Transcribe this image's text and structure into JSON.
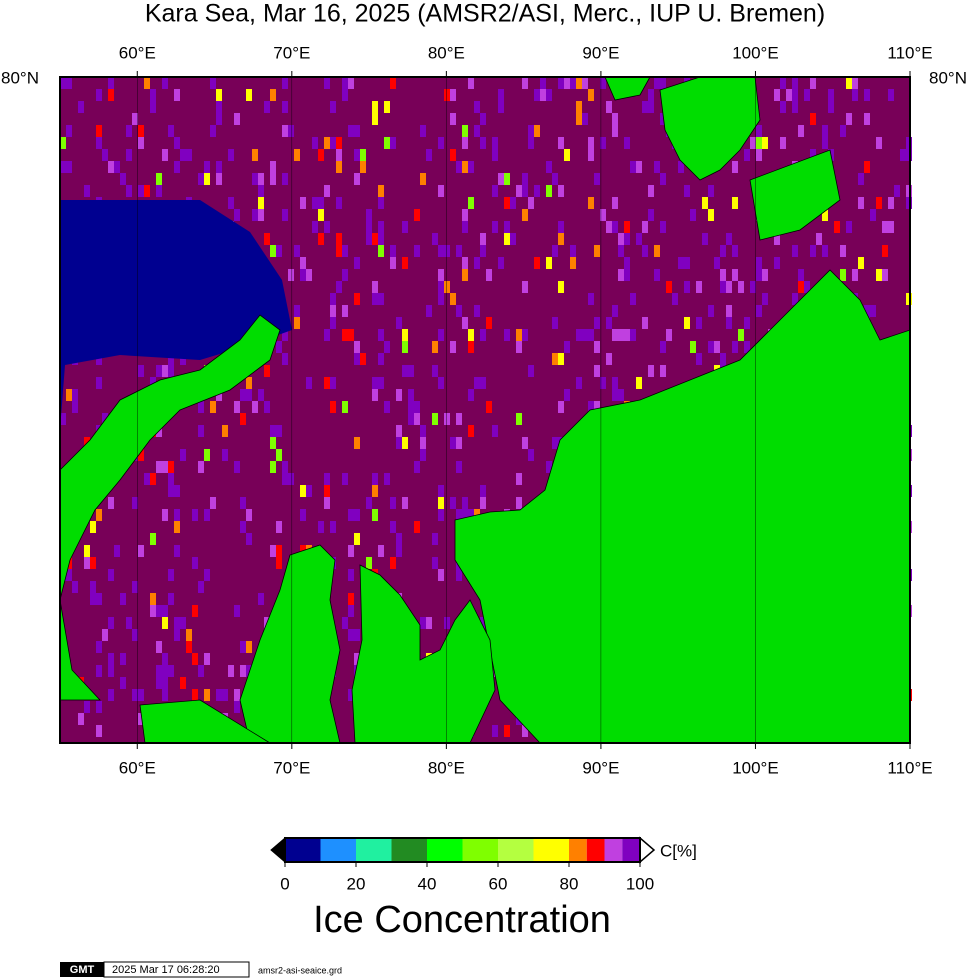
{
  "map": {
    "title": "Kara Sea, Mar 16, 2025 (AMSR2/ASI, Merc., IUP U. Bremen)",
    "lonlim": [
      55,
      110
    ],
    "lonticks": [
      {
        "value": 60,
        "label": "60°E"
      },
      {
        "value": 70,
        "label": "70°E"
      },
      {
        "value": 80,
        "label": "80°E"
      },
      {
        "value": 90,
        "label": "90°E"
      },
      {
        "value": 100,
        "label": "100°E"
      },
      {
        "value": 110,
        "label": "110°E"
      }
    ],
    "lat_label": "80°N",
    "ocean_color": "#780058",
    "land_color": "#00dd00"
  },
  "colorbar": {
    "bins": [
      0,
      10,
      20,
      30,
      40,
      50,
      60,
      70,
      80,
      85,
      90,
      95,
      100
    ],
    "colors": [
      "#000090",
      "#1e90ff",
      "#20f0a0",
      "#228b22",
      "#00ff00",
      "#7fff00",
      "#b4ff40",
      "#ffff00",
      "#ff8000",
      "#ff0000",
      "#c040e0",
      "#8000c0"
    ],
    "ticks": [
      0,
      20,
      40,
      60,
      80,
      100
    ],
    "unit": "C[%]",
    "caption": "Ice Concentration"
  },
  "footer": {
    "logo": "GMT",
    "timestamp": "2025 Mar 17 06:28:20",
    "file": "amsr2-asi-seaice.grd"
  }
}
